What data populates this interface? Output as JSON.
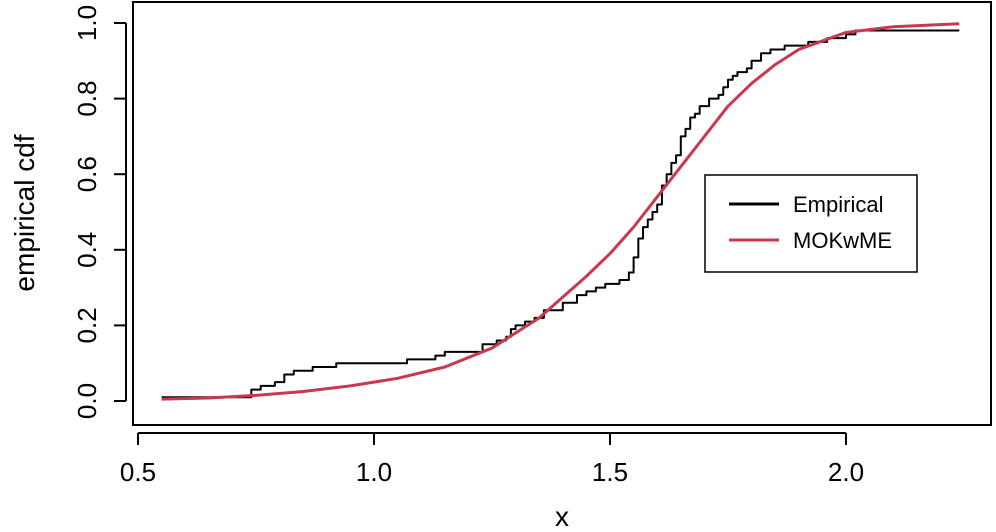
{
  "chart_data": {
    "type": "line",
    "xlabel": "x",
    "ylabel": "empirical cdf",
    "xlim": [
      0.5,
      2.3
    ],
    "ylim": [
      -0.05,
      1.03
    ],
    "x_ticks": [
      0.5,
      1.0,
      1.5,
      2.0
    ],
    "x_tick_labels": [
      "0.5",
      "1.0",
      "1.5",
      "2.0"
    ],
    "y_ticks": [
      0.0,
      0.2,
      0.4,
      0.6,
      0.8,
      1.0
    ],
    "y_tick_labels": [
      "0.0",
      "0.2",
      "0.4",
      "0.6",
      "0.8",
      "1.0"
    ],
    "grid": false,
    "legend_position": "right",
    "series": [
      {
        "name": "Empirical",
        "kind": "step",
        "color": "#000000",
        "x": [
          0.55,
          0.74,
          0.76,
          0.79,
          0.81,
          0.83,
          0.87,
          0.92,
          1.0,
          1.07,
          1.13,
          1.15,
          1.2,
          1.23,
          1.26,
          1.28,
          1.29,
          1.3,
          1.32,
          1.34,
          1.36,
          1.38,
          1.4,
          1.43,
          1.45,
          1.46,
          1.47,
          1.49,
          1.52,
          1.54,
          1.55,
          1.56,
          1.57,
          1.58,
          1.59,
          1.6,
          1.61,
          1.62,
          1.63,
          1.64,
          1.65,
          1.66,
          1.67,
          1.68,
          1.69,
          1.71,
          1.73,
          1.74,
          1.75,
          1.76,
          1.77,
          1.79,
          1.8,
          1.82,
          1.84,
          1.87,
          1.92,
          1.96,
          2.0,
          2.02,
          2.24
        ],
        "y": [
          0.01,
          0.03,
          0.04,
          0.05,
          0.07,
          0.08,
          0.09,
          0.1,
          0.1,
          0.11,
          0.12,
          0.13,
          0.13,
          0.15,
          0.16,
          0.17,
          0.19,
          0.2,
          0.21,
          0.22,
          0.24,
          0.24,
          0.26,
          0.28,
          0.29,
          0.29,
          0.3,
          0.31,
          0.32,
          0.34,
          0.38,
          0.43,
          0.46,
          0.48,
          0.5,
          0.52,
          0.57,
          0.6,
          0.63,
          0.65,
          0.7,
          0.72,
          0.75,
          0.76,
          0.78,
          0.8,
          0.81,
          0.83,
          0.85,
          0.86,
          0.87,
          0.88,
          0.9,
          0.92,
          0.93,
          0.94,
          0.95,
          0.96,
          0.97,
          0.98,
          0.98
        ]
      },
      {
        "name": "MOKwME",
        "kind": "line",
        "color": "#c9384f",
        "x": [
          0.55,
          0.65,
          0.75,
          0.85,
          0.95,
          1.05,
          1.15,
          1.25,
          1.35,
          1.45,
          1.5,
          1.55,
          1.6,
          1.65,
          1.7,
          1.75,
          1.8,
          1.85,
          1.9,
          2.0,
          2.1,
          2.24
        ],
        "y": [
          0.005,
          0.008,
          0.015,
          0.025,
          0.04,
          0.06,
          0.09,
          0.14,
          0.22,
          0.33,
          0.39,
          0.46,
          0.54,
          0.62,
          0.7,
          0.78,
          0.84,
          0.89,
          0.93,
          0.975,
          0.99,
          0.998
        ]
      }
    ]
  }
}
